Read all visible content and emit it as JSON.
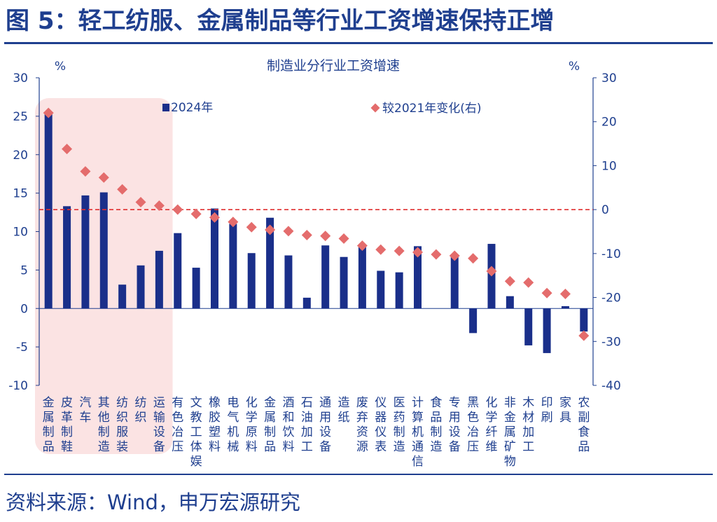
{
  "figure": {
    "title": "图 5：轻工纺服、金属制品等行业工资增速保持正增",
    "source": "资料来源：Wind，申万宏源研究"
  },
  "chart_data": {
    "type": "bar",
    "title": "制造业分行业工资增速",
    "left_unit": "%",
    "right_unit": "%",
    "categories": [
      "金属制品",
      "皮革制鞋",
      "汽车",
      "其他制造",
      "纺织服装",
      "纺织",
      "运输设备",
      "有色冶压",
      "文教工体娱",
      "橡胶塑料",
      "电气机械",
      "化学原料",
      "金属制品",
      "酒和饮料",
      "石油加工",
      "通用设备",
      "造纸",
      "废弃资源",
      "仪器仪表",
      "医药制造",
      "计算机通信",
      "食品制造",
      "专用设备",
      "黑色冶压",
      "化学纤维",
      "非金属矿物",
      "木材加工",
      "印刷",
      "家具",
      "农副食品"
    ],
    "series": [
      {
        "name": "2024年",
        "axis": "left",
        "kind": "bar",
        "color": "#1a2f8a",
        "values": [
          25.3,
          13.3,
          14.7,
          15.1,
          3.1,
          5.6,
          7.5,
          9.8,
          5.3,
          13.0,
          11.0,
          7.2,
          11.8,
          6.9,
          1.4,
          8.2,
          6.7,
          8.0,
          4.9,
          4.7,
          8.1,
          0.0,
          7.0,
          -3.2,
          8.4,
          1.6,
          -4.8,
          -5.8,
          0.3,
          -3.0
        ]
      },
      {
        "name": "较2021年变化(右)",
        "axis": "right",
        "kind": "marker",
        "color": "#e46c6c",
        "values": [
          22.0,
          13.8,
          8.7,
          7.3,
          4.6,
          1.7,
          0.9,
          0.0,
          -1.0,
          -1.8,
          -2.8,
          -4.0,
          -4.6,
          -4.9,
          -5.8,
          -6.0,
          -6.6,
          -8.2,
          -9.1,
          -9.4,
          -9.7,
          -10.2,
          -10.5,
          -11.1,
          -14.0,
          -16.3,
          -16.6,
          -19.0,
          -19.2,
          -28.7
        ]
      }
    ],
    "ylim_left": [
      -10,
      30
    ],
    "ylim_right": [
      -40,
      30
    ],
    "yticks_left": [
      "30",
      "25",
      "20",
      "15",
      "10",
      "5",
      "0",
      "-5",
      "-10"
    ],
    "yticks_right": [
      "30",
      "20",
      "10",
      "0",
      "-10",
      "-20",
      "-30",
      "-40"
    ],
    "reference_line": {
      "axis": "right",
      "value": 0,
      "style": "dashed",
      "color": "#e03030"
    },
    "highlight": {
      "from_index": 0,
      "to_index": 6,
      "color": "#fbe3e3"
    },
    "legend_placement": "top"
  }
}
